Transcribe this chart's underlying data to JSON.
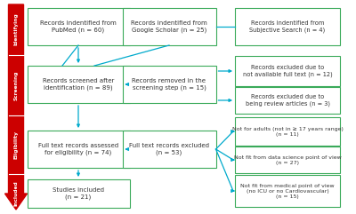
{
  "background_color": "#ffffff",
  "arrow_color": "#cc0000",
  "box_border_color": "#3aaa5a",
  "box_fill_color": "#ffffff",
  "connector_color": "#00aacc",
  "text_color": "#333333",
  "stage_labels": [
    "Identifying",
    "Screening",
    "Eligibility",
    "Included"
  ],
  "left_boxes": [
    {
      "text": "Records indentified from\nPubMed (n = 60)"
    },
    {
      "text": "Records screened after\nidentification (n = 89)"
    },
    {
      "text": "Full text records assessed\nfor eligibility (n = 74)"
    },
    {
      "text": "Studies included\n(n = 21)"
    }
  ],
  "middle_boxes": [
    {
      "text": "Records indentified from\nGoogle Scholar (n = 25)"
    },
    {
      "text": "Records removed in the\nscreening step (n = 15)"
    },
    {
      "text": "Full text records excluded\n(n = 53)"
    }
  ],
  "right_boxes": [
    {
      "text": "Records indentified from\nSubjective Search (n = 4)"
    },
    {
      "text": "Records excluded due to\nnot available full text (n = 12)"
    },
    {
      "text": "Records excluded due to\nbeing review articles (n = 3)"
    },
    {
      "text": "Not for adults (not in ≥ 17 years range)\n(n = 11)"
    },
    {
      "text": "Not fit from data science point of view\n(n = 27)"
    },
    {
      "text": "Not fit from medical point of view\n(no ICU or no Cardiovascular)\n(n = 15)"
    }
  ]
}
